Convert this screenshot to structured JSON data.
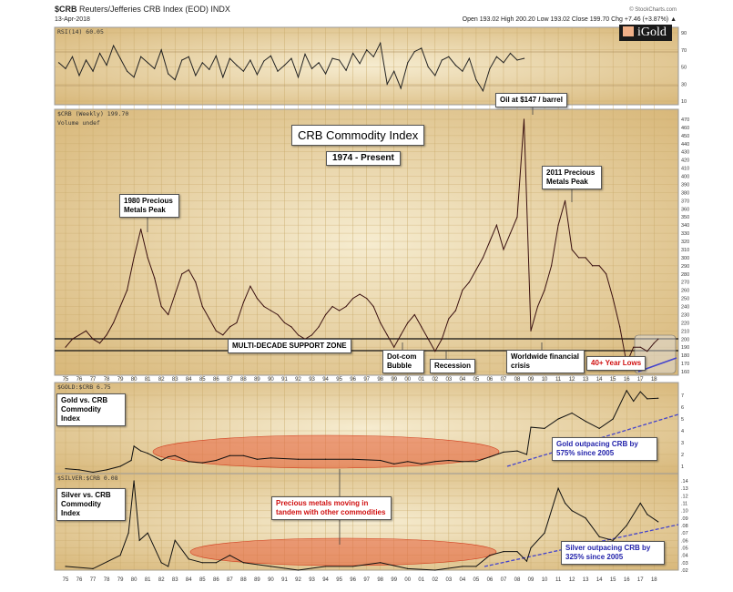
{
  "header": {
    "symbol": "$CRB",
    "name": "Reuters/Jefferies CRB Index (EOD) INDX",
    "date": "13-Apr-2018",
    "copyright": "© StockCharts.com",
    "quote": "Open 193.02  High 200.20  Low 193.02  Close 199.70  Chg +7.46 (+3.87%) ▲"
  },
  "logo": "iGold",
  "panels": {
    "rsi": "RSI(14) 60.05",
    "main": "$CRB (Weekly) 199.70",
    "volume": "Volume undef",
    "gold": "$GOLD:$CRB 6.75",
    "silver": "$SILVER:$CRB 0.08"
  },
  "annotations": {
    "title": "CRB Commodity Index",
    "subtitle": "1974 - Present",
    "oil": "Oil at $147 / barrel",
    "peak1980": "1980 Precious Metals Peak",
    "peak2011": "2011 Precious Metals Peak",
    "support": "MULTI-DECADE SUPPORT ZONE",
    "dotcom": "Dot-com Bubble",
    "recession": "Recession",
    "crisis": "Worldwide financial crisis",
    "lows": "40+ Year Lows",
    "gold_label": "Gold vs. CRB Commodity Index",
    "gold_out": "Gold outpacing CRB by 575% since 2005",
    "silver_label": "Silver vs. CRB Commodity Index",
    "silver_out": "Silver outpacing CRB by 325% since 2005",
    "tandem": "Precious metals moving in tandem with other commodities"
  },
  "chart_data": [
    {
      "type": "line",
      "title": "RSI(14)",
      "x_start": 1974.5,
      "x_step": 0.5,
      "ylim": [
        0,
        100
      ],
      "yticks": [
        10,
        30,
        50,
        70,
        90
      ],
      "values": [
        55,
        48,
        62,
        40,
        58,
        45,
        66,
        52,
        75,
        60,
        45,
        38,
        62,
        55,
        48,
        70,
        42,
        35,
        58,
        62,
        40,
        55,
        47,
        63,
        38,
        60,
        52,
        45,
        58,
        41,
        57,
        63,
        45,
        52,
        60,
        38,
        65,
        48,
        55,
        42,
        60,
        58,
        46,
        66,
        54,
        70,
        62,
        78,
        30,
        45,
        25,
        55,
        68,
        72,
        50,
        40,
        58,
        62,
        52,
        45,
        60,
        35,
        22,
        48,
        62,
        55,
        66,
        58,
        60
      ]
    },
    {
      "type": "line",
      "title": "$CRB (Weekly)",
      "ylim": [
        160,
        470
      ],
      "yticks_step": 10,
      "x": [
        1975,
        1975.5,
        1976,
        1976.5,
        1977,
        1977.5,
        1978,
        1978.5,
        1979,
        1979.5,
        1980,
        1980.5,
        1981,
        1981.5,
        1982,
        1982.5,
        1983,
        1983.5,
        1984,
        1984.5,
        1985,
        1985.5,
        1986,
        1986.5,
        1987,
        1987.5,
        1988,
        1988.5,
        1989,
        1989.5,
        1990,
        1990.5,
        1991,
        1991.5,
        1992,
        1992.5,
        1993,
        1993.5,
        1994,
        1994.5,
        1995,
        1995.5,
        1996,
        1996.5,
        1997,
        1997.5,
        1998,
        1998.5,
        1999,
        1999.5,
        2000,
        2000.5,
        2001,
        2001.5,
        2002,
        2002.5,
        2003,
        2003.5,
        2004,
        2004.5,
        2005,
        2005.5,
        2006,
        2006.5,
        2007,
        2007.5,
        2008,
        2008.5,
        2009,
        2009.5,
        2010,
        2010.5,
        2011,
        2011.5,
        2012,
        2012.5,
        2013,
        2013.5,
        2014,
        2014.5,
        2015,
        2015.5,
        2016,
        2016.5,
        2017,
        2017.5,
        2018,
        2018.3
      ],
      "values": [
        190,
        200,
        205,
        210,
        200,
        195,
        205,
        220,
        240,
        260,
        300,
        335,
        300,
        275,
        240,
        230,
        255,
        280,
        285,
        270,
        240,
        225,
        210,
        205,
        215,
        220,
        245,
        265,
        250,
        240,
        235,
        230,
        220,
        215,
        205,
        200,
        205,
        215,
        230,
        240,
        235,
        240,
        250,
        255,
        250,
        240,
        220,
        205,
        190,
        205,
        220,
        230,
        215,
        200,
        185,
        200,
        225,
        235,
        260,
        270,
        285,
        300,
        320,
        340,
        310,
        330,
        350,
        470,
        210,
        240,
        260,
        290,
        340,
        370,
        310,
        300,
        300,
        290,
        290,
        280,
        250,
        215,
        170,
        190,
        190,
        185,
        195,
        200
      ]
    },
    {
      "type": "line",
      "title": "$GOLD:$CRB",
      "ylim": [
        0.5,
        7.5
      ],
      "yticks": [
        1,
        2,
        3,
        4,
        5,
        6,
        7
      ],
      "x": [
        1975,
        1976,
        1977,
        1978,
        1979,
        1979.8,
        1980,
        1980.5,
        1981,
        1982,
        1982.5,
        1983,
        1984,
        1985,
        1986,
        1987,
        1988,
        1989,
        1990,
        1992,
        1994,
        1996,
        1998,
        1999,
        2000,
        2001,
        2002,
        2003,
        2004,
        2005,
        2006,
        2007,
        2008,
        2008.7,
        2009,
        2010,
        2011,
        2012,
        2013,
        2014,
        2015,
        2016,
        2016.5,
        2017,
        2017.5,
        2018.3
      ],
      "values": [
        0.8,
        0.7,
        0.5,
        0.7,
        1.0,
        1.5,
        2.7,
        2.3,
        2.1,
        1.5,
        1.8,
        1.9,
        1.4,
        1.3,
        1.5,
        1.9,
        1.9,
        1.6,
        1.7,
        1.6,
        1.6,
        1.6,
        1.5,
        1.2,
        1.4,
        1.2,
        1.4,
        1.5,
        1.4,
        1.4,
        1.8,
        2.2,
        2.3,
        2.0,
        4.3,
        4.2,
        5.0,
        5.5,
        4.8,
        4.2,
        5.0,
        7.4,
        6.5,
        7.3,
        6.7,
        6.75
      ]
    },
    {
      "type": "line",
      "title": "$SILVER:$CRB",
      "ylim": [
        0.015,
        0.145
      ],
      "yticks": [
        0.02,
        0.03,
        0.04,
        0.05,
        0.06,
        0.07,
        0.08,
        0.09,
        0.1,
        0.11,
        0.12,
        0.13,
        0.14
      ],
      "x": [
        1975,
        1977,
        1979,
        1979.6,
        1980,
        1980.4,
        1981,
        1982,
        1982.5,
        1983,
        1984,
        1985,
        1986,
        1987,
        1988,
        1990,
        1992,
        1994,
        1996,
        1998,
        2000,
        2002,
        2004,
        2005,
        2006,
        2007,
        2008,
        2008.7,
        2009,
        2010,
        2011,
        2011.5,
        2012,
        2013,
        2014,
        2015,
        2016,
        2017,
        2017.5,
        2018.3
      ],
      "values": [
        0.025,
        0.022,
        0.04,
        0.07,
        0.14,
        0.06,
        0.07,
        0.03,
        0.025,
        0.06,
        0.035,
        0.03,
        0.03,
        0.04,
        0.03,
        0.025,
        0.02,
        0.025,
        0.025,
        0.03,
        0.022,
        0.02,
        0.025,
        0.025,
        0.04,
        0.045,
        0.045,
        0.032,
        0.05,
        0.07,
        0.13,
        0.11,
        0.1,
        0.09,
        0.065,
        0.06,
        0.08,
        0.11,
        0.095,
        0.085
      ]
    }
  ],
  "x_ticks": [
    "75",
    "76",
    "77",
    "78",
    "79",
    "80",
    "81",
    "82",
    "83",
    "84",
    "85",
    "86",
    "87",
    "88",
    "89",
    "90",
    "91",
    "92",
    "93",
    "94",
    "95",
    "96",
    "97",
    "98",
    "99",
    "00",
    "01",
    "02",
    "03",
    "04",
    "05",
    "06",
    "07",
    "08",
    "09",
    "10",
    "11",
    "12",
    "13",
    "14",
    "15",
    "16",
    "17",
    "18"
  ]
}
